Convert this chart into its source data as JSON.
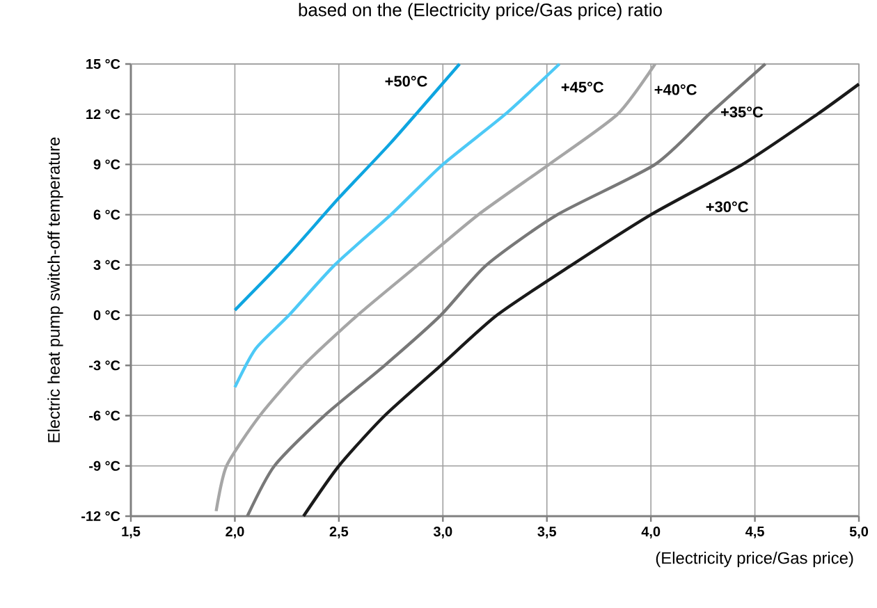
{
  "chart_data": {
    "type": "line",
    "title": "based on the (Electricity price/Gas price) ratio",
    "xlabel": "(Electricity price/Gas price)",
    "ylabel": "Electric heat pump switch-off temperature",
    "xlim": [
      1.5,
      5.0
    ],
    "ylim": [
      -12,
      15
    ],
    "xticks": [
      {
        "value": 1.5,
        "label": "1,5"
      },
      {
        "value": 2.0,
        "label": "2,0"
      },
      {
        "value": 2.5,
        "label": "2,5"
      },
      {
        "value": 3.0,
        "label": "3,0"
      },
      {
        "value": 3.5,
        "label": "3,5"
      },
      {
        "value": 4.0,
        "label": "4,0"
      },
      {
        "value": 4.5,
        "label": "4,5"
      },
      {
        "value": 5.0,
        "label": "5,0"
      }
    ],
    "yticks": [
      {
        "value": -12,
        "label": "-12 °C"
      },
      {
        "value": -9,
        "label": "-9 °C"
      },
      {
        "value": -6,
        "label": "-6 °C"
      },
      {
        "value": -3,
        "label": "-3 °C"
      },
      {
        "value": 0,
        "label": "0 °C"
      },
      {
        "value": 3,
        "label": "3 °C"
      },
      {
        "value": 6,
        "label": "6 °C"
      },
      {
        "value": 9,
        "label": "9 °C"
      },
      {
        "value": 12,
        "label": "12 °C"
      },
      {
        "value": 15,
        "label": "15 °C"
      }
    ],
    "grid": true,
    "marker": "none",
    "line_style": "solid",
    "series": [
      {
        "name": "+50°C",
        "color": "#0ea5e0",
        "x": [
          2.0,
          2.25,
          2.5,
          2.75,
          3.08
        ],
        "values": [
          0.3,
          3.5,
          7.0,
          10.3,
          15
        ]
      },
      {
        "name": "+45°C",
        "color": "#4dc9f6",
        "x": [
          2.0,
          2.1,
          2.26,
          2.48,
          2.75,
          3.0,
          3.3,
          3.56
        ],
        "values": [
          -4.3,
          -2.0,
          0,
          3,
          6,
          9,
          12,
          15
        ]
      },
      {
        "name": "+40°C",
        "color": "#a6a6a6",
        "x": [
          1.91,
          1.96,
          2.12,
          2.33,
          2.59,
          2.88,
          3.17,
          3.51,
          3.84,
          4.02
        ],
        "values": [
          -11.7,
          -9,
          -6,
          -3,
          0,
          3,
          6,
          9,
          12,
          15
        ]
      },
      {
        "name": "+35°C",
        "color": "#787878",
        "x": [
          2.06,
          2.19,
          2.43,
          2.72,
          2.99,
          3.21,
          3.55,
          4.02,
          4.28,
          4.55
        ],
        "values": [
          -12,
          -9,
          -6,
          -3,
          0,
          3,
          6,
          9,
          12,
          15
        ]
      },
      {
        "name": "+30°C",
        "color": "#1a1a1a",
        "x": [
          2.33,
          2.5,
          2.72,
          2.99,
          3.26,
          3.62,
          4.0,
          4.44,
          4.8,
          5.0
        ],
        "values": [
          -12,
          -9,
          -6,
          -3,
          0,
          3,
          6,
          9,
          12,
          13.8
        ]
      }
    ]
  }
}
